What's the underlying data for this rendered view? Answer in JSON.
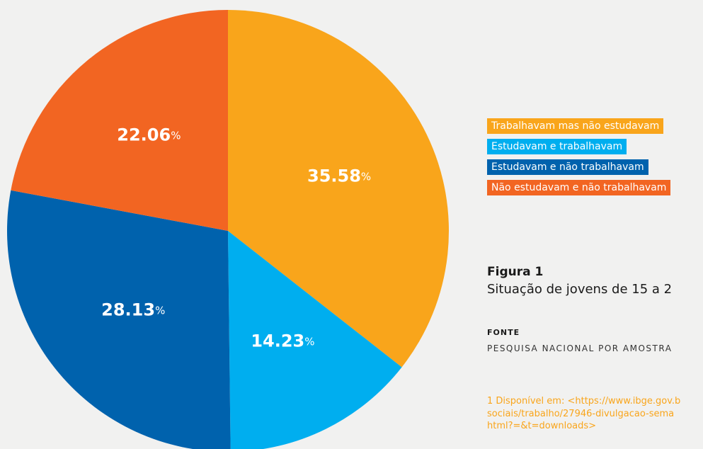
{
  "chart_data": {
    "type": "pie",
    "series": [
      {
        "name": "Trabalhavam mas não estudavam",
        "color": "#f9a51b",
        "values": [
          35.58
        ]
      },
      {
        "name": "Estudavam e trabalhavam",
        "color": "#00aeef",
        "values": [
          14.23
        ]
      },
      {
        "name": "Estudavam e não trabalhavam",
        "color": "#0062ad",
        "values": [
          28.13
        ]
      },
      {
        "name": "Não estudavam e não trabalhavam",
        "color": "#f26522",
        "values": [
          22.06
        ]
      }
    ],
    "value_unit": "%",
    "legend": "right"
  },
  "caption": {
    "label": "Figura 1",
    "text": "Situação de jovens de 15 a 2"
  },
  "source": {
    "label": "FONTE",
    "text": "PESQUISA NACIONAL POR AMOSTRA"
  },
  "footnote": {
    "lines": [
      "1 Disponível em: <https://www.ibge.gov.b",
      "sociais/trabalho/27946-divulgacao-sema",
      "html?=&t=downloads>"
    ]
  }
}
